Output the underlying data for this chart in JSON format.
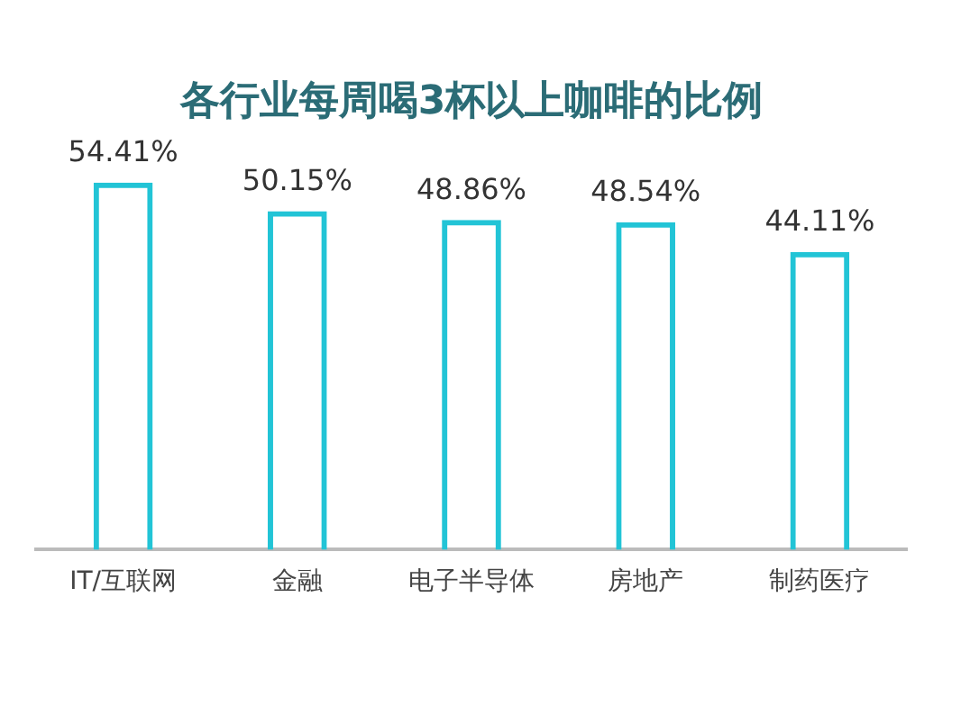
{
  "chart_data": {
    "type": "bar",
    "title": "各行业每周喝3杯以上咖啡的比例",
    "categories": [
      "IT/互联网",
      "金融",
      "电子半导体",
      "房地产",
      "制药医疗"
    ],
    "values": [
      54.41,
      50.15,
      48.86,
      48.54,
      44.11
    ],
    "value_labels": [
      "54.41%",
      "50.15%",
      "48.86%",
      "48.54%",
      "44.11%"
    ],
    "color": "#22c4d6",
    "grid": false,
    "legend": false,
    "tick_labels": "x"
  }
}
